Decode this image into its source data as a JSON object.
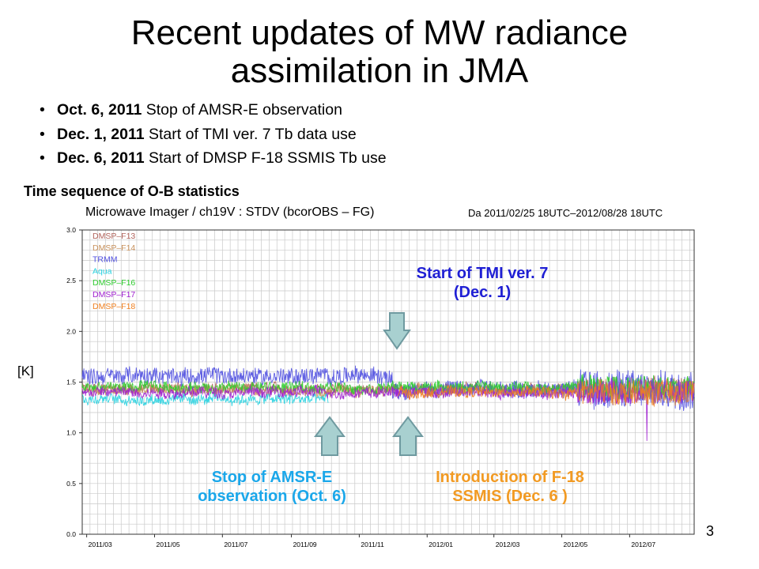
{
  "slide": {
    "title_line1": "Recent updates of MW radiance",
    "title_line2": "assimilation in JMA",
    "bullets": [
      {
        "date": "Oct. 6, 2011",
        "text": " Stop of AMSR-E observation"
      },
      {
        "date": "Dec. 1, 2011",
        "text": " Start of TMI ver. 7 Tb data use"
      },
      {
        "date": "Dec. 6, 2011",
        "text": " Start of DMSP F-18 SSMIS Tb use"
      }
    ],
    "section_heading": "Time sequence of O-B statistics",
    "unit_label": "[K]",
    "page_number": "3"
  },
  "annotations": {
    "tmi_line1": "Start of TMI ver. 7",
    "tmi_line2": "(Dec. 1)",
    "amsr_line1": "Stop of AMSR-E",
    "amsr_line2": "observation (Oct. 6)",
    "f18_line1": "Introduction of F-18",
    "f18_line2": "SSMIS (Dec. 6 )",
    "colors": {
      "tmi": "#1f1fd4",
      "amsr": "#1aa7ea",
      "f18": "#f29a22",
      "arrow_fill": "#a8d0d0",
      "arrow_stroke": "#6f9aa0"
    }
  },
  "chart_data": {
    "type": "line",
    "title": "Microwave Imager / ch19V : STDV (bcorOBS – FG)",
    "period": "Da 2011/02/25 18UTC–2012/08/28 18UTC",
    "xlabel": "",
    "ylabel": "[K]",
    "ylim": [
      0.0,
      3.0
    ],
    "yticks": [
      "0.0",
      "0.5",
      "1.0",
      "1.5",
      "2.0",
      "2.5",
      "3.0"
    ],
    "xlim": [
      "2011-02-25",
      "2012-08-28"
    ],
    "xticks": [
      {
        "label": "2011/03",
        "date": "2011-03-01"
      },
      {
        "label": "2011/05",
        "date": "2011-05-01"
      },
      {
        "label": "2011/07",
        "date": "2011-07-01"
      },
      {
        "label": "2011/09",
        "date": "2011-09-01"
      },
      {
        "label": "2011/11",
        "date": "2011-11-01"
      },
      {
        "label": "2012/01",
        "date": "2012-01-01"
      },
      {
        "label": "2012/03",
        "date": "2012-03-01"
      },
      {
        "label": "2012/05",
        "date": "2012-05-01"
      },
      {
        "label": "2012/07",
        "date": "2012-07-01"
      }
    ],
    "grid": true,
    "legend_placement": "top-left",
    "series": [
      {
        "name": "DMSP–F13",
        "color": "#b0625a",
        "start": "2011-02-25",
        "end": "2012-08-28",
        "mean": 1.43
      },
      {
        "name": "DMSP–F14",
        "color": "#c8905a",
        "start": "2011-02-25",
        "end": "2012-08-28",
        "mean": 1.42
      },
      {
        "name": "TRMM",
        "color": "#5050e0",
        "start": "2011-02-25",
        "end": "2012-08-28",
        "mean": 1.55
      },
      {
        "name": "Aqua",
        "color": "#27d2e0",
        "start": "2011-02-25",
        "end": "2011-10-04",
        "mean": 1.33
      },
      {
        "name": "DMSP–F16",
        "color": "#2ecc2e",
        "start": "2011-02-25",
        "end": "2012-08-28",
        "mean": 1.45
      },
      {
        "name": "DMSP–F17",
        "color": "#a020d0",
        "start": "2011-02-25",
        "end": "2012-08-28",
        "mean": 1.4
      },
      {
        "name": "DMSP–F18",
        "color": "#f08020",
        "start": "2011-12-06",
        "end": "2012-08-28",
        "mean": 1.4
      }
    ]
  }
}
